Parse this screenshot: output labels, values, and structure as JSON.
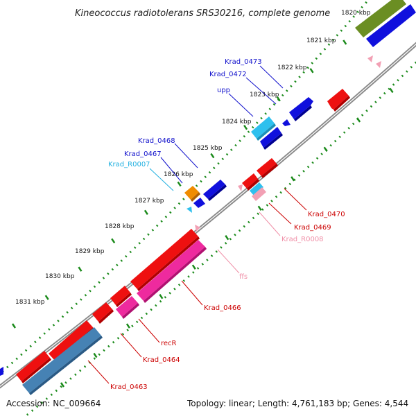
{
  "title": "Kineococcus radiotolerans SRS30216, complete genome",
  "footer": {
    "accession": "Accession: NC_009664",
    "topology": "Topology: linear; Length: 4,761,183 bp; Genes: 4,544"
  },
  "kbp_ticks": [
    {
      "label": "1820 kbp",
      "pos": 1820
    },
    {
      "label": "1821 kbp",
      "pos": 1821
    },
    {
      "label": "1822 kbp",
      "pos": 1822
    },
    {
      "label": "1823 kbp",
      "pos": 1823
    },
    {
      "label": "1824 kbp",
      "pos": 1824
    },
    {
      "label": "1825 kbp",
      "pos": 1825
    },
    {
      "label": "1826 kbp",
      "pos": 1826
    },
    {
      "label": "1827 kbp",
      "pos": 1827
    },
    {
      "label": "1828 kbp",
      "pos": 1828
    },
    {
      "label": "1829 kbp",
      "pos": 1829
    },
    {
      "label": "1830 kbp",
      "pos": 1830
    },
    {
      "label": "1831 kbp",
      "pos": 1831
    }
  ],
  "colors": {
    "forward_cds": "#1010dd",
    "forward_rna": "#2ec0ee",
    "forward_olive": "#6b8e23",
    "forward_orange": "#f08c00",
    "reverse_cds": "#ee1010",
    "reverse_magenta": "#ee2a9e",
    "reverse_steel": "#4682b4",
    "reverse_pink": "#f2a0b4",
    "label_forward": "#1010cc",
    "label_forward_rna": "#20b0e0",
    "label_reverse": "#cc0000",
    "label_reverse_pink": "#f090a8"
  },
  "gene_labels": [
    {
      "text": "Krad_0473",
      "color": "label_forward"
    },
    {
      "text": "Krad_0472",
      "color": "label_forward"
    },
    {
      "text": "upp",
      "color": "label_forward"
    },
    {
      "text": "Krad_0468",
      "color": "label_forward"
    },
    {
      "text": "Krad_0467",
      "color": "label_forward"
    },
    {
      "text": "Krad_R0007",
      "color": "label_forward_rna"
    },
    {
      "text": "Krad_0470",
      "color": "label_reverse"
    },
    {
      "text": "Krad_0469",
      "color": "label_reverse"
    },
    {
      "text": "Krad_R0008",
      "color": "label_reverse_pink"
    },
    {
      "text": "ffs",
      "color": "label_reverse_pink"
    },
    {
      "text": "Krad_0466",
      "color": "label_reverse"
    },
    {
      "text": "recR",
      "color": "label_reverse"
    },
    {
      "text": "Krad_0464",
      "color": "label_reverse"
    },
    {
      "text": "Krad_0463",
      "color": "label_reverse"
    }
  ],
  "features": [
    {
      "name": "olive-block",
      "strand": "forward",
      "start": 1819.6,
      "end": 1820.6,
      "color": "forward_olive"
    },
    {
      "name": "blue-block-top",
      "strand": "forward",
      "start": 1819.6,
      "end": 1820.6,
      "color": "forward_cds"
    },
    {
      "name": "Krad_0473",
      "strand": "forward",
      "start": 1822.55,
      "end": 1822.95,
      "color": "forward_cds"
    },
    {
      "name": "Krad_0472",
      "strand": "forward",
      "start": 1823.15,
      "end": 1823.25,
      "color": "forward_cds"
    },
    {
      "name": "upp",
      "strand": "forward",
      "start": 1823.4,
      "end": 1823.75,
      "color": "forward_rna"
    },
    {
      "name": "blue-upp-partner",
      "strand": "forward",
      "start": 1823.45,
      "end": 1823.8,
      "color": "forward_cds"
    },
    {
      "name": "Krad_0468",
      "strand": "forward",
      "start": 1826.05,
      "end": 1826.4,
      "color": "forward_cds"
    },
    {
      "name": "Krad_0467",
      "strand": "forward",
      "start": 1826.6,
      "end": 1826.75,
      "color": "forward_cds"
    },
    {
      "name": "orange-feature",
      "strand": "forward",
      "start": 1826.55,
      "end": 1826.72,
      "color": "forward_orange"
    },
    {
      "name": "Krad_R0007",
      "strand": "forward",
      "start": 1827.12,
      "end": 1827.18,
      "color": "forward_rna"
    },
    {
      "name": "red-top-right",
      "strand": "reverse",
      "start": 1823.3,
      "end": 1823.65,
      "color": "reverse_cds"
    },
    {
      "name": "Krad_0470",
      "strand": "reverse",
      "start": 1825.9,
      "end": 1826.2,
      "color": "reverse_cds"
    },
    {
      "name": "Krad_0469",
      "strand": "reverse",
      "start": 1826.35,
      "end": 1826.6,
      "color": "reverse_cds"
    },
    {
      "name": "Krad_R0008",
      "strand": "reverse",
      "start": 1826.55,
      "end": 1826.75,
      "color": "reverse_pink"
    },
    {
      "name": "Krad_R0008b",
      "strand": "reverse",
      "start": 1826.6,
      "end": 1826.75,
      "color": "forward_rna"
    },
    {
      "name": "ffs",
      "strand": "reverse",
      "start": 1827.6,
      "end": 1827.65,
      "color": "reverse_pink"
    },
    {
      "name": "Krad_0466-red",
      "strand": "reverse",
      "start": 1827.8,
      "end": 1829.65,
      "color": "reverse_cds"
    },
    {
      "name": "Krad_0466",
      "strand": "reverse",
      "start": 1828.0,
      "end": 1829.85,
      "color": "reverse_magenta"
    },
    {
      "name": "recR",
      "strand": "reverse",
      "start": 1829.75,
      "end": 1830.2,
      "color": "reverse_cds"
    },
    {
      "name": "Krad_0464",
      "strand": "reverse",
      "start": 1830.05,
      "end": 1830.4,
      "color": "reverse_magenta"
    },
    {
      "name": "Krad_0464-red",
      "strand": "reverse",
      "start": 1830.4,
      "end": 1830.75,
      "color": "reverse_cds"
    },
    {
      "name": "Krad_0463",
      "strand": "reverse",
      "start": 1830.95,
      "end": 1831.75,
      "color": "reverse_cds"
    },
    {
      "name": "Krad_0463-steel",
      "strand": "reverse",
      "start": 1830.95,
      "end": 1832.55,
      "color": "reverse_steel"
    },
    {
      "name": "red-bottom-left",
      "strand": "reverse",
      "start": 1831.85,
      "end": 1832.55,
      "color": "reverse_cds"
    }
  ]
}
